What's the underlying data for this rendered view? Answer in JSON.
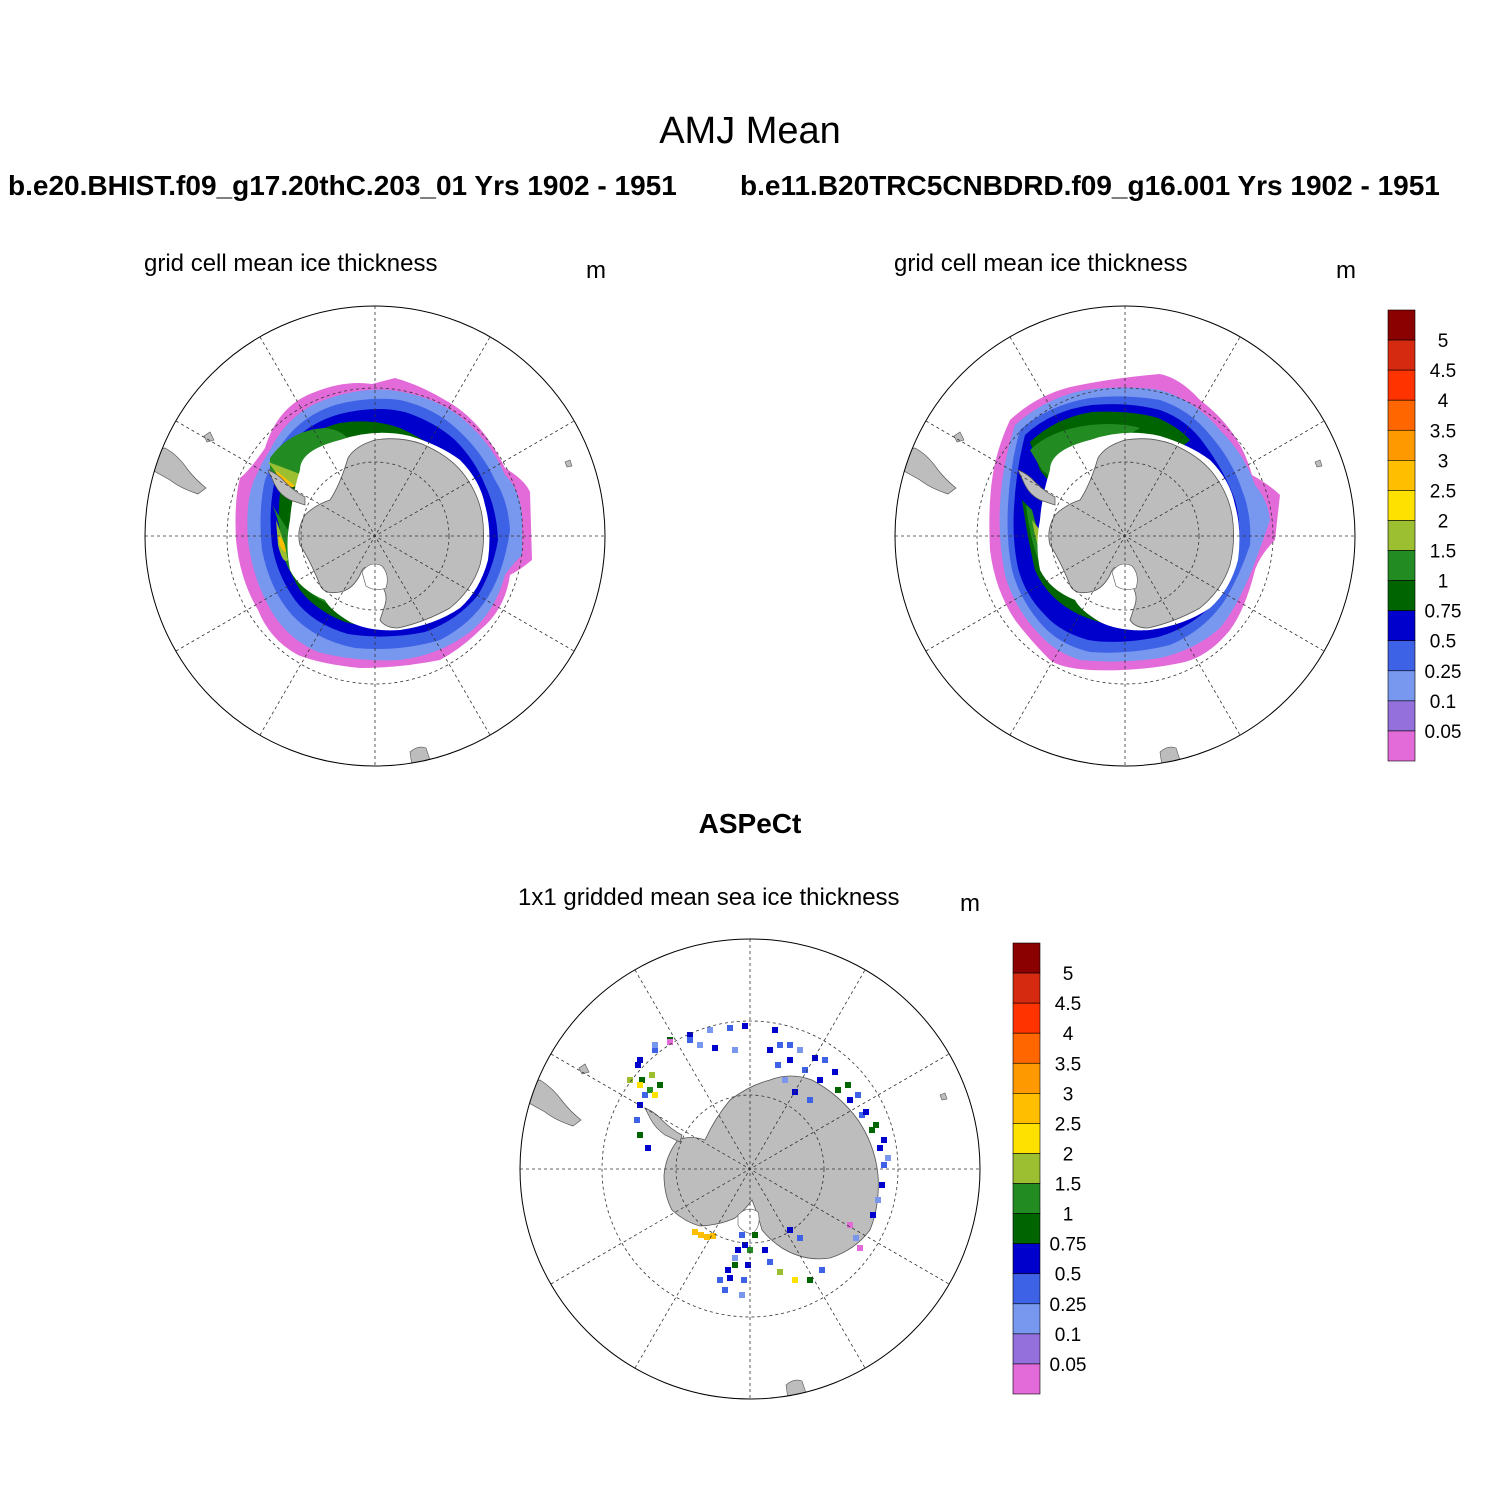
{
  "title": "AMJ Mean",
  "panels": [
    {
      "case_title": "b.e20.BHIST.f09_g17.20thC.203_01  Yrs 1902 - 1951",
      "variable": "grid cell mean ice thickness",
      "units": "m"
    },
    {
      "case_title": "b.e11.B20TRC5CNBDRD.f09_g16.001  Yrs 1902 - 1951",
      "variable": "grid cell mean ice thickness",
      "units": "m"
    },
    {
      "case_title": "ASPeCt",
      "variable": "1x1 gridded mean sea ice thickness",
      "units": "m"
    }
  ],
  "colorbar": {
    "labels": [
      "5",
      "4.5",
      "4",
      "3.5",
      "3",
      "2.5",
      "2",
      "1.5",
      "1",
      "0.75",
      "0.5",
      "0.25",
      "0.1",
      "0.05"
    ],
    "colors": [
      "#8b0000",
      "#d62a10",
      "#ff3300",
      "#ff6600",
      "#ff9900",
      "#ffbf00",
      "#ffe100",
      "#9cbf32",
      "#228b22",
      "#006400",
      "#0000cd",
      "#3e62e6",
      "#7897ee",
      "#9370db",
      "#e36bd9"
    ]
  },
  "chart_data": {
    "type": "heatmap",
    "projection": "south polar stereographic",
    "field": "sea ice thickness",
    "units": "m",
    "season": "AMJ",
    "contour_levels": [
      0.05,
      0.1,
      0.25,
      0.5,
      0.75,
      1,
      1.5,
      2,
      2.5,
      3,
      3.5,
      4,
      4.5,
      5
    ],
    "maps": [
      {
        "name": "b.e20.BHIST.f09_g17.20thC.203_01",
        "years": [
          1902,
          1951
        ]
      },
      {
        "name": "b.e11.B20TRC5CNBDRD.f09_g16.001",
        "years": [
          1902,
          1951
        ]
      },
      {
        "name": "ASPeCt"
      }
    ]
  }
}
